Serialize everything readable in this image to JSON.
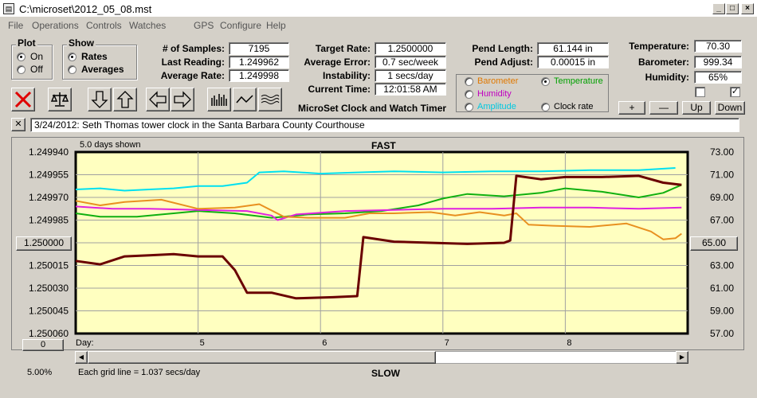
{
  "window": {
    "title": "C:\\microset\\2012_05_08.mst"
  },
  "menu": [
    "File",
    "Operations",
    "Controls",
    "Watches",
    "GPS",
    "Configure",
    "Help"
  ],
  "plot": {
    "label": "Plot",
    "options": [
      "On",
      "Off"
    ],
    "selected": "On"
  },
  "show": {
    "label": "Show",
    "options": [
      "Rates",
      "Averages"
    ],
    "selected": "Rates"
  },
  "stats": {
    "samples_label": "# of Samples:",
    "samples": "7195",
    "last_label": "Last Reading:",
    "last": "1.249962",
    "avg_label": "Average Rate:",
    "avg": "1.249998"
  },
  "rates": {
    "target_label": "Target Rate:",
    "target": "1.2500000",
    "avgerr_label": "Average Error:",
    "avgerr": "0.7 sec/week",
    "instab_label": "Instability:",
    "instab": "1 secs/day",
    "time_label": "Current Time:",
    "time": "12:01:58 AM"
  },
  "pend": {
    "length_label": "Pend Length:",
    "length": "61.144 in",
    "adjust_label": "Pend Adjust:",
    "adjust": "0.00015 in"
  },
  "env": {
    "temp_label": "Temperature:",
    "temp": "70.30",
    "baro_label": "Barometer:",
    "baro": "999.34",
    "hum_label": "Humidity:",
    "hum": "65%"
  },
  "app_caption": "MicroSet Clock and Watch Timer",
  "series_select": {
    "items": [
      {
        "name": "Barometer",
        "color": "#e07800"
      },
      {
        "name": "Temperature",
        "color": "#00a000"
      },
      {
        "name": "Humidity",
        "color": "#c000c0"
      },
      {
        "name": "Amplitude",
        "color": "#00c8e0"
      },
      {
        "name": "Clock rate",
        "color": "#000000"
      }
    ],
    "selected": "Temperature"
  },
  "scale_buttons": {
    "plus": "+",
    "minus": "—",
    "up": "Up",
    "down": "Down"
  },
  "note": {
    "close": "✕",
    "text": "3/24/2012: Seth Thomas tower clock in the Santa Barbara County Courthouse"
  },
  "chart_header": {
    "days_shown": "5.0 days shown",
    "fast": "FAST",
    "slow": "SLOW"
  },
  "chart_footer": {
    "zero_btn": "0",
    "percent": "5.00%",
    "grid_note": "Each grid line = 1.037 secs/day"
  },
  "center_left": "1.250000",
  "center_right": "65.00",
  "chart_data": {
    "type": "line",
    "x_label": "Day:",
    "x_ticks": [
      "5",
      "6",
      "7",
      "8"
    ],
    "left_ticks": [
      "1.249940",
      "1.249955",
      "1.249970",
      "1.249985",
      "1.250000",
      "1.250015",
      "1.250030",
      "1.250045",
      "1.250060"
    ],
    "right_ticks": [
      "73.00",
      "71.00",
      "69.00",
      "67.00",
      "65.00",
      "63.00",
      "61.00",
      "59.00",
      "57.00"
    ],
    "xlim": [
      4.0,
      9.0
    ],
    "ylim_left": [
      1.24994,
      1.25006
    ],
    "ylim_right": [
      57.0,
      73.0
    ],
    "grid": true,
    "series": [
      {
        "name": "Amplitude",
        "color": "#00e0f0",
        "values": [
          [
            4.0,
            69.7
          ],
          [
            4.2,
            69.8
          ],
          [
            4.4,
            69.6
          ],
          [
            4.6,
            69.7
          ],
          [
            4.8,
            69.8
          ],
          [
            5.0,
            70.0
          ],
          [
            5.2,
            70.0
          ],
          [
            5.4,
            70.3
          ],
          [
            5.5,
            71.2
          ],
          [
            5.7,
            71.3
          ],
          [
            6.0,
            71.1
          ],
          [
            6.3,
            71.2
          ],
          [
            6.6,
            71.3
          ],
          [
            7.0,
            71.2
          ],
          [
            7.4,
            71.3
          ],
          [
            7.8,
            71.3
          ],
          [
            8.2,
            71.4
          ],
          [
            8.6,
            71.4
          ],
          [
            8.9,
            71.6
          ]
        ]
      },
      {
        "name": "Temperature",
        "color": "#10b010",
        "values": [
          [
            4.0,
            67.6
          ],
          [
            4.2,
            67.3
          ],
          [
            4.5,
            67.3
          ],
          [
            4.8,
            67.6
          ],
          [
            5.0,
            67.8
          ],
          [
            5.3,
            67.6
          ],
          [
            5.6,
            67.2
          ],
          [
            5.9,
            67.5
          ],
          [
            6.2,
            67.6
          ],
          [
            6.5,
            67.8
          ],
          [
            6.8,
            68.3
          ],
          [
            7.0,
            68.9
          ],
          [
            7.2,
            69.3
          ],
          [
            7.5,
            69.1
          ],
          [
            7.8,
            69.4
          ],
          [
            8.0,
            69.8
          ],
          [
            8.3,
            69.5
          ],
          [
            8.6,
            69.0
          ],
          [
            8.8,
            69.4
          ],
          [
            8.95,
            70.1
          ]
        ]
      },
      {
        "name": "Humidity",
        "color": "#e020e0",
        "values": [
          [
            4.0,
            68.2
          ],
          [
            4.3,
            68.0
          ],
          [
            4.6,
            68.0
          ],
          [
            5.0,
            67.9
          ],
          [
            5.4,
            67.8
          ],
          [
            5.6,
            67.4
          ],
          [
            5.65,
            67.0
          ],
          [
            5.8,
            67.5
          ],
          [
            6.2,
            67.8
          ],
          [
            6.6,
            67.9
          ],
          [
            7.0,
            68.0
          ],
          [
            7.4,
            68.0
          ],
          [
            7.8,
            68.1
          ],
          [
            8.2,
            68.1
          ],
          [
            8.6,
            68.0
          ],
          [
            8.95,
            68.1
          ]
        ]
      },
      {
        "name": "Barometer",
        "color": "#e89020",
        "values": [
          [
            4.0,
            68.7
          ],
          [
            4.2,
            68.3
          ],
          [
            4.4,
            68.6
          ],
          [
            4.7,
            68.8
          ],
          [
            5.0,
            68.0
          ],
          [
            5.3,
            68.1
          ],
          [
            5.5,
            68.4
          ],
          [
            5.7,
            67.3
          ],
          [
            5.9,
            67.2
          ],
          [
            6.2,
            67.2
          ],
          [
            6.4,
            67.6
          ],
          [
            6.6,
            67.6
          ],
          [
            6.9,
            67.7
          ],
          [
            7.1,
            67.4
          ],
          [
            7.3,
            67.7
          ],
          [
            7.5,
            67.4
          ],
          [
            7.6,
            67.6
          ],
          [
            7.7,
            66.6
          ],
          [
            7.9,
            66.5
          ],
          [
            8.2,
            66.4
          ],
          [
            8.5,
            66.7
          ],
          [
            8.7,
            66.0
          ],
          [
            8.8,
            65.3
          ],
          [
            8.9,
            65.4
          ],
          [
            8.95,
            65.8
          ]
        ]
      },
      {
        "name": "Clock rate",
        "color": "#6a0000",
        "values": [
          [
            4.0,
            63.4
          ],
          [
            4.2,
            63.1
          ],
          [
            4.4,
            63.8
          ],
          [
            4.6,
            63.9
          ],
          [
            4.8,
            64.0
          ],
          [
            5.0,
            63.8
          ],
          [
            5.2,
            63.8
          ],
          [
            5.3,
            62.6
          ],
          [
            5.4,
            60.6
          ],
          [
            5.6,
            60.6
          ],
          [
            5.8,
            60.1
          ],
          [
            6.1,
            60.2
          ],
          [
            6.3,
            60.3
          ],
          [
            6.35,
            65.5
          ],
          [
            6.6,
            65.1
          ],
          [
            6.9,
            65.0
          ],
          [
            7.2,
            64.9
          ],
          [
            7.5,
            65.0
          ],
          [
            7.55,
            65.2
          ],
          [
            7.6,
            70.9
          ],
          [
            7.8,
            70.6
          ],
          [
            8.0,
            70.8
          ],
          [
            8.3,
            70.8
          ],
          [
            8.6,
            70.9
          ],
          [
            8.8,
            70.3
          ],
          [
            8.95,
            70.1
          ]
        ]
      }
    ]
  }
}
